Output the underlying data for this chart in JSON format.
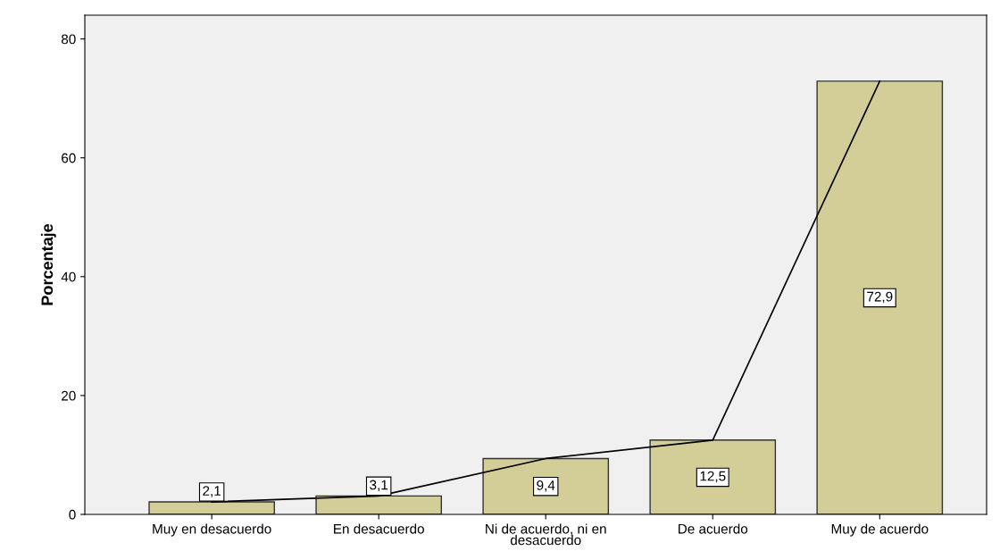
{
  "chart_data": {
    "type": "bar",
    "ylabel": "Porcentaje",
    "categories": [
      "Muy en desacuerdo",
      "En desacuerdo",
      "Ni de acuerdo, ni en\ndesacuerdo",
      "De acuerdo",
      "Muy de acuerdo"
    ],
    "series": [
      {
        "color": "#d3ce97",
        "values": [
          2.1,
          3.1,
          9.4,
          12.5,
          72.9
        ],
        "value_labels": [
          "2,1",
          "3,1",
          "9,4",
          "12,5",
          "72,9"
        ]
      },
      {
        "type": "line",
        "color": "#000000",
        "values": [
          2.1,
          3.1,
          9.4,
          12.5,
          72.9
        ]
      }
    ],
    "ylim": [
      0,
      84
    ],
    "yticks": [
      0,
      20,
      40,
      60,
      80
    ],
    "grid": false,
    "marker": "none",
    "line_style": "solid"
  }
}
